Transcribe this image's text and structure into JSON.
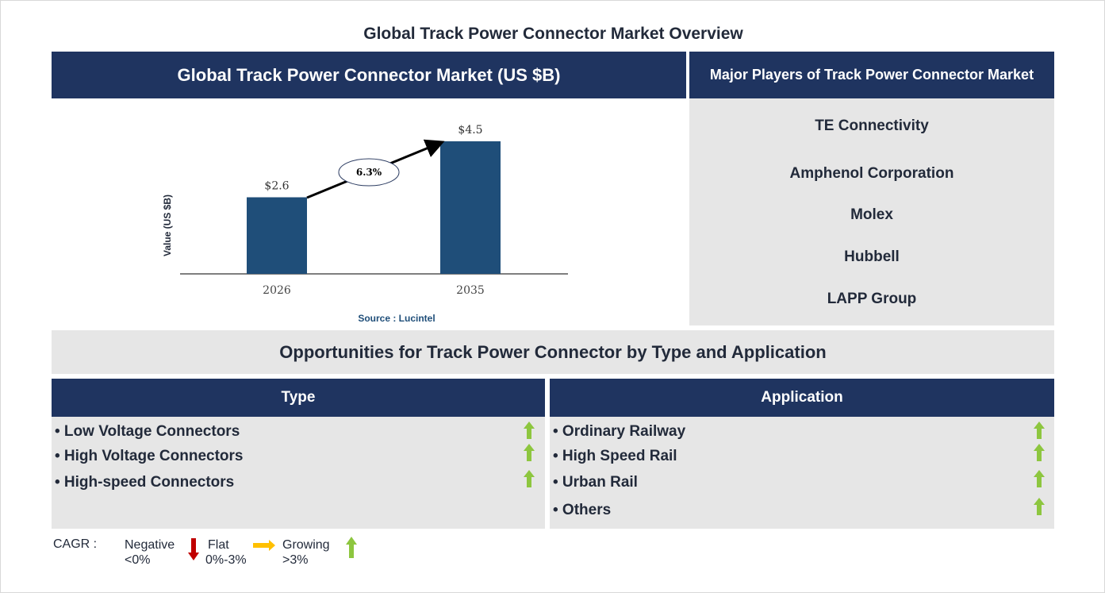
{
  "title": "Global Track Power Connector Market Overview",
  "chart_header": "Global Track Power Connector Market (US $B)",
  "players_header": "Major Players of Track Power Connector Market",
  "players": [
    "TE Connectivity",
    "Amphenol Corporation",
    "Molex",
    "Hubbell",
    "LAPP Group"
  ],
  "chart_data": {
    "type": "bar",
    "categories": [
      "2026",
      "2035"
    ],
    "values": [
      2.6,
      4.5
    ],
    "data_labels": [
      "$2.6",
      "$4.5"
    ],
    "ylabel": "Value (US $B)",
    "cagr_label": "6.3%",
    "source": "Source : Lucintel",
    "bar_color": "#1f4e79"
  },
  "opportunities_header": "Opportunities for Track Power Connector by Type and Application",
  "type": {
    "header": "Type",
    "items": [
      "• Low Voltage Connectors",
      "• High Voltage Connectors",
      "• High-speed Connectors"
    ]
  },
  "application": {
    "header": "Application",
    "items": [
      "• Ordinary Railway",
      "• High Speed Rail",
      "• Urban Rail",
      "• Others"
    ]
  },
  "legend": {
    "cagr": "CAGR :",
    "negative": "Negative",
    "negative_range": "<0%",
    "flat": "Flat",
    "flat_range": "0%-3%",
    "growing": "Growing",
    "growing_range": ">3%"
  },
  "colors": {
    "navy": "#1f3460",
    "up": "#8dc63f",
    "down": "#c00000",
    "flat": "#ffc000"
  }
}
